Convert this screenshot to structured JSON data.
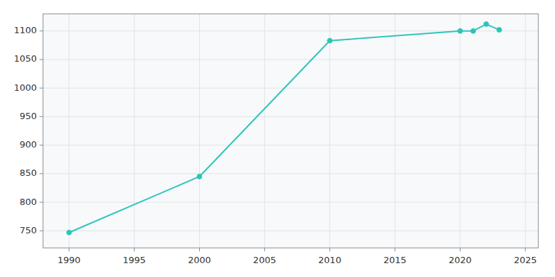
{
  "chart_data": {
    "type": "line",
    "x": [
      1990,
      2000,
      2010,
      2020,
      2021,
      2022,
      2023
    ],
    "values": [
      747,
      845,
      1083,
      1100,
      1100,
      1112,
      1102
    ],
    "color": "#2dc5b8",
    "marker": "circle",
    "xlim": [
      1988,
      2026
    ],
    "ylim": [
      720,
      1130
    ],
    "xticks": [
      1990,
      1995,
      2000,
      2005,
      2010,
      2015,
      2020,
      2025
    ],
    "yticks": [
      750,
      800,
      850,
      900,
      950,
      1000,
      1050,
      1100
    ],
    "grid": true
  }
}
